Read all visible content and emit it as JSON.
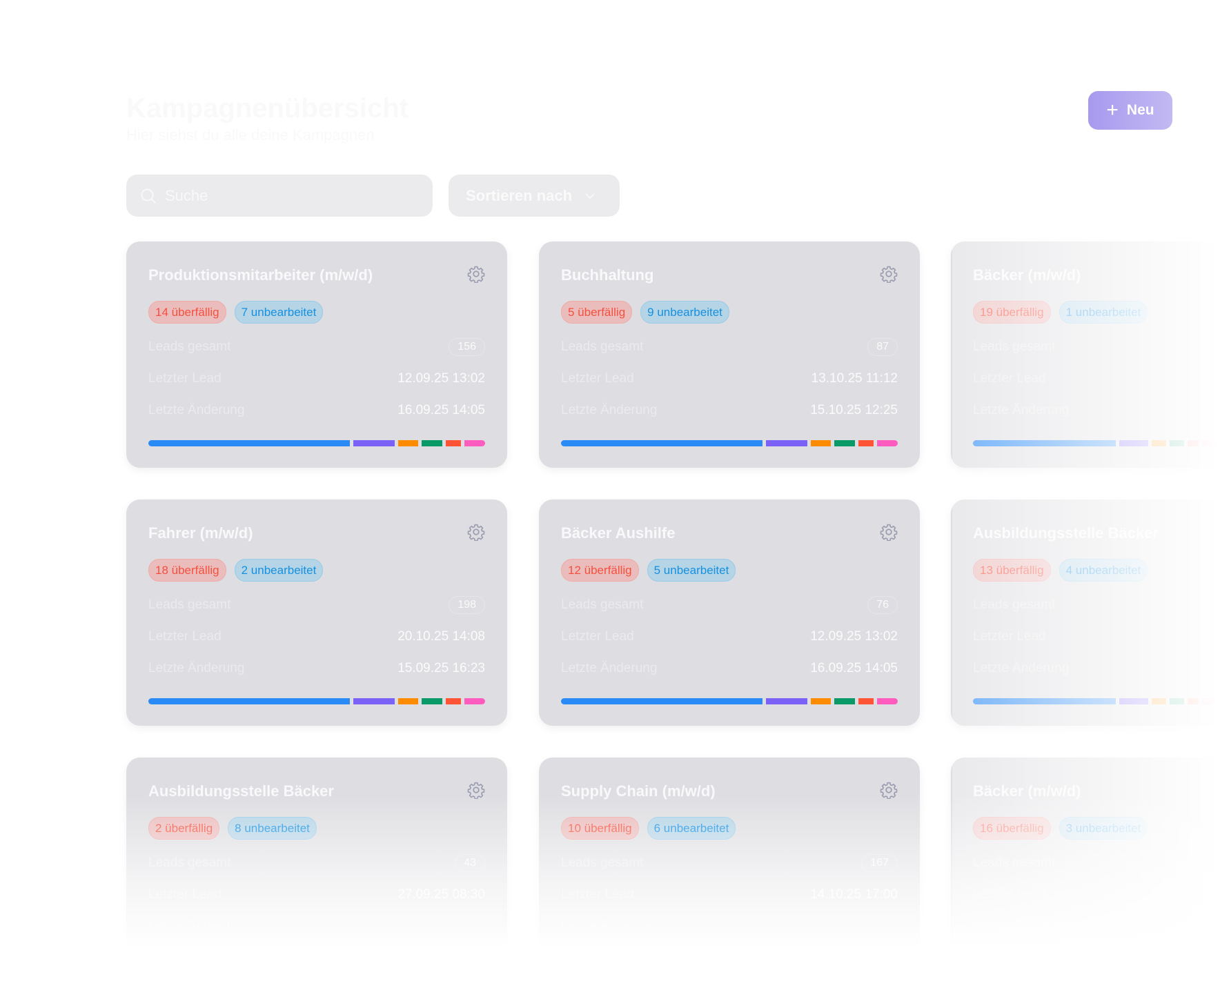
{
  "header": {
    "title": "Kampagnenübersicht",
    "subtitle": "Hier siehst du alle deine Kampagnen",
    "new_button": "Neu",
    "new_icon": "plus-icon"
  },
  "toolbar": {
    "search_placeholder": "Suche",
    "search_value": "",
    "sort_label": "Sortieren nach"
  },
  "labels": {
    "leads_total": "Leads gesamt",
    "last_lead": "Letzter Lead",
    "last_change": "Letzte Änderung"
  },
  "status_colors": [
    "#2a8af6",
    "#7b61f5",
    "#ff8c00",
    "#0a9a68",
    "#ff5436",
    "#ff5cc0"
  ],
  "status_shares": [
    59,
    12,
    6,
    6,
    4.5,
    6
  ],
  "cards": [
    {
      "title": "Produktionsmitarbeiter (m/w/d)",
      "overdue": "14 überfällig",
      "unprocessed": "7 unbearbeitet",
      "leads": "156",
      "last_lead": "12.09.25 13:02",
      "last_change": "16.09.25 14:05"
    },
    {
      "title": "Buchhaltung",
      "overdue": "5 überfällig",
      "unprocessed": "9 unbearbeitet",
      "leads": "87",
      "last_lead": "13.10.25 11:12",
      "last_change": "15.10.25 12:25"
    },
    {
      "title": "Bäcker (m/w/d)",
      "overdue": "19 überfällig",
      "unprocessed": "1 unbearbeitet",
      "leads": "",
      "last_lead": "",
      "last_change": ""
    },
    {
      "title": "Fahrer (m/w/d)",
      "overdue": "18 überfällig",
      "unprocessed": "2 unbearbeitet",
      "leads": "198",
      "last_lead": "20.10.25 14:08",
      "last_change": "15.09.25 16:23"
    },
    {
      "title": "Bäcker Aushilfe",
      "overdue": "12 überfällig",
      "unprocessed": "5 unbearbeitet",
      "leads": "76",
      "last_lead": "12.09.25 13:02",
      "last_change": "16.09.25 14:05"
    },
    {
      "title": "Ausbildungsstelle Bäcker",
      "overdue": "13 überfällig",
      "unprocessed": "4 unbearbeitet",
      "leads": "",
      "last_lead": "",
      "last_change": ""
    },
    {
      "title": "Ausbildungsstelle Bäcker",
      "overdue": "2 überfällig",
      "unprocessed": "8 unbearbeitet",
      "leads": "43",
      "last_lead": "27.09.25 08:30",
      "last_change": ""
    },
    {
      "title": "Supply Chain (m/w/d)",
      "overdue": "10 überfällig",
      "unprocessed": "6 unbearbeitet",
      "leads": "167",
      "last_lead": "14.10.25 17:00",
      "last_change": ""
    },
    {
      "title": "Bäcker (m/w/d)",
      "overdue": "16 überfällig",
      "unprocessed": "3 unbearbeitet",
      "leads": "",
      "last_lead": "",
      "last_change": ""
    }
  ]
}
